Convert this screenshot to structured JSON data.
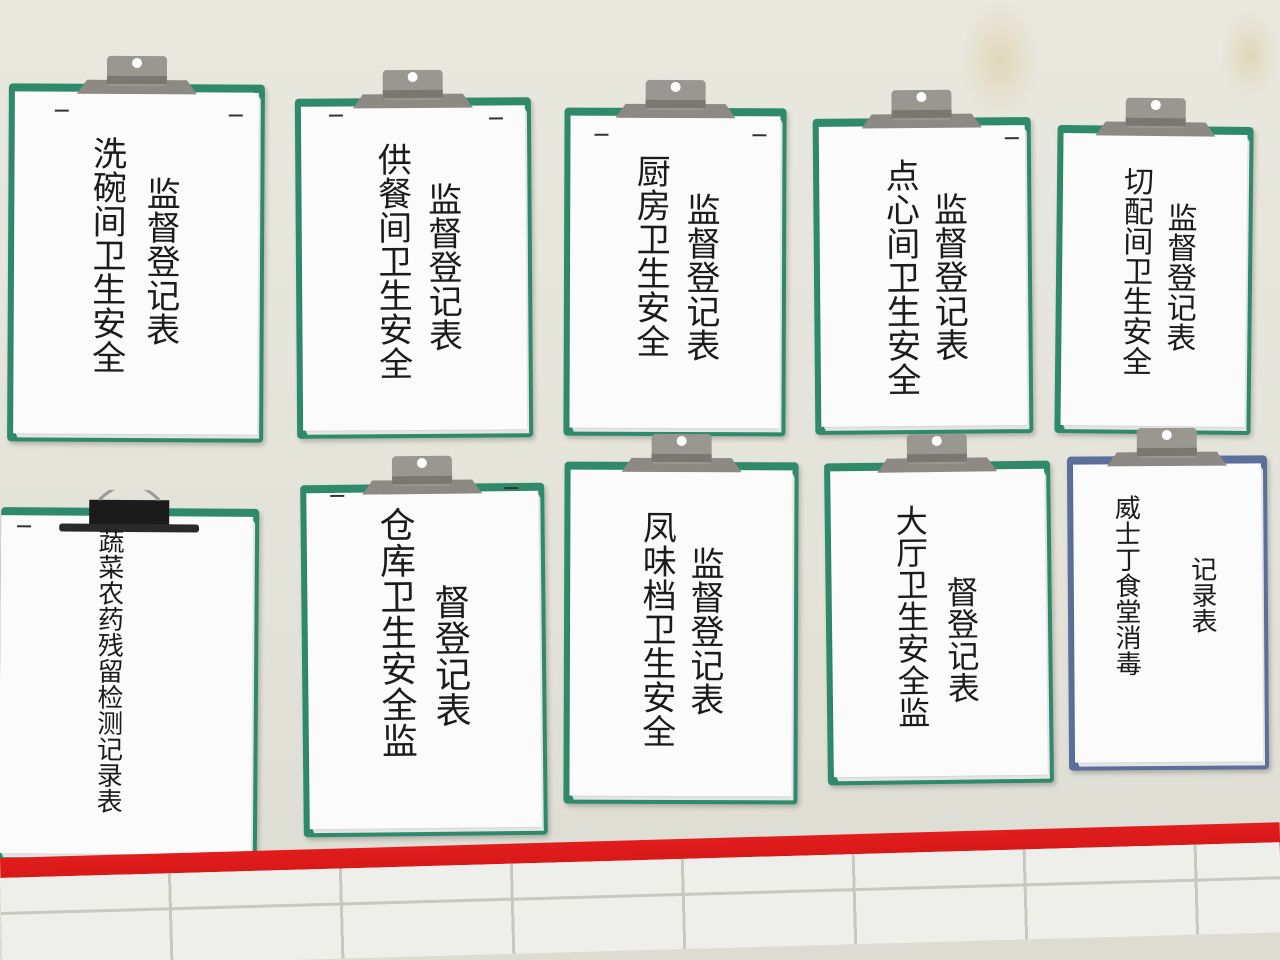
{
  "clipboards": [
    {
      "col_a": "洗碗间卫生安全",
      "col_b": "监督登记表"
    },
    {
      "col_a": "供餐间卫生安全",
      "col_b": "监督登记表"
    },
    {
      "col_a": "厨房卫生安全",
      "col_b": "监督登记表"
    },
    {
      "col_a": "点心间卫生安全",
      "col_b": "监督登记表"
    },
    {
      "col_a": "切配间卫生安全",
      "col_b": "监督登记表"
    },
    {
      "col_a": "蔬菜农药残留检测记录表"
    },
    {
      "col_a": "仓库卫生安全监",
      "col_b": "督登记表"
    },
    {
      "col_a": "凤味档卫生安全",
      "col_b": "监督登记表"
    },
    {
      "col_a": "大厅卫生安全监",
      "col_b": "督登记表"
    },
    {
      "col_a": "威士丁食堂消毒",
      "col_b": "记录表"
    }
  ],
  "colors": {
    "board_green": "#2f8a6a",
    "board_blue": "#5a6f9a",
    "stripe_red": "#e11d1d",
    "wall": "#e9e8df"
  }
}
